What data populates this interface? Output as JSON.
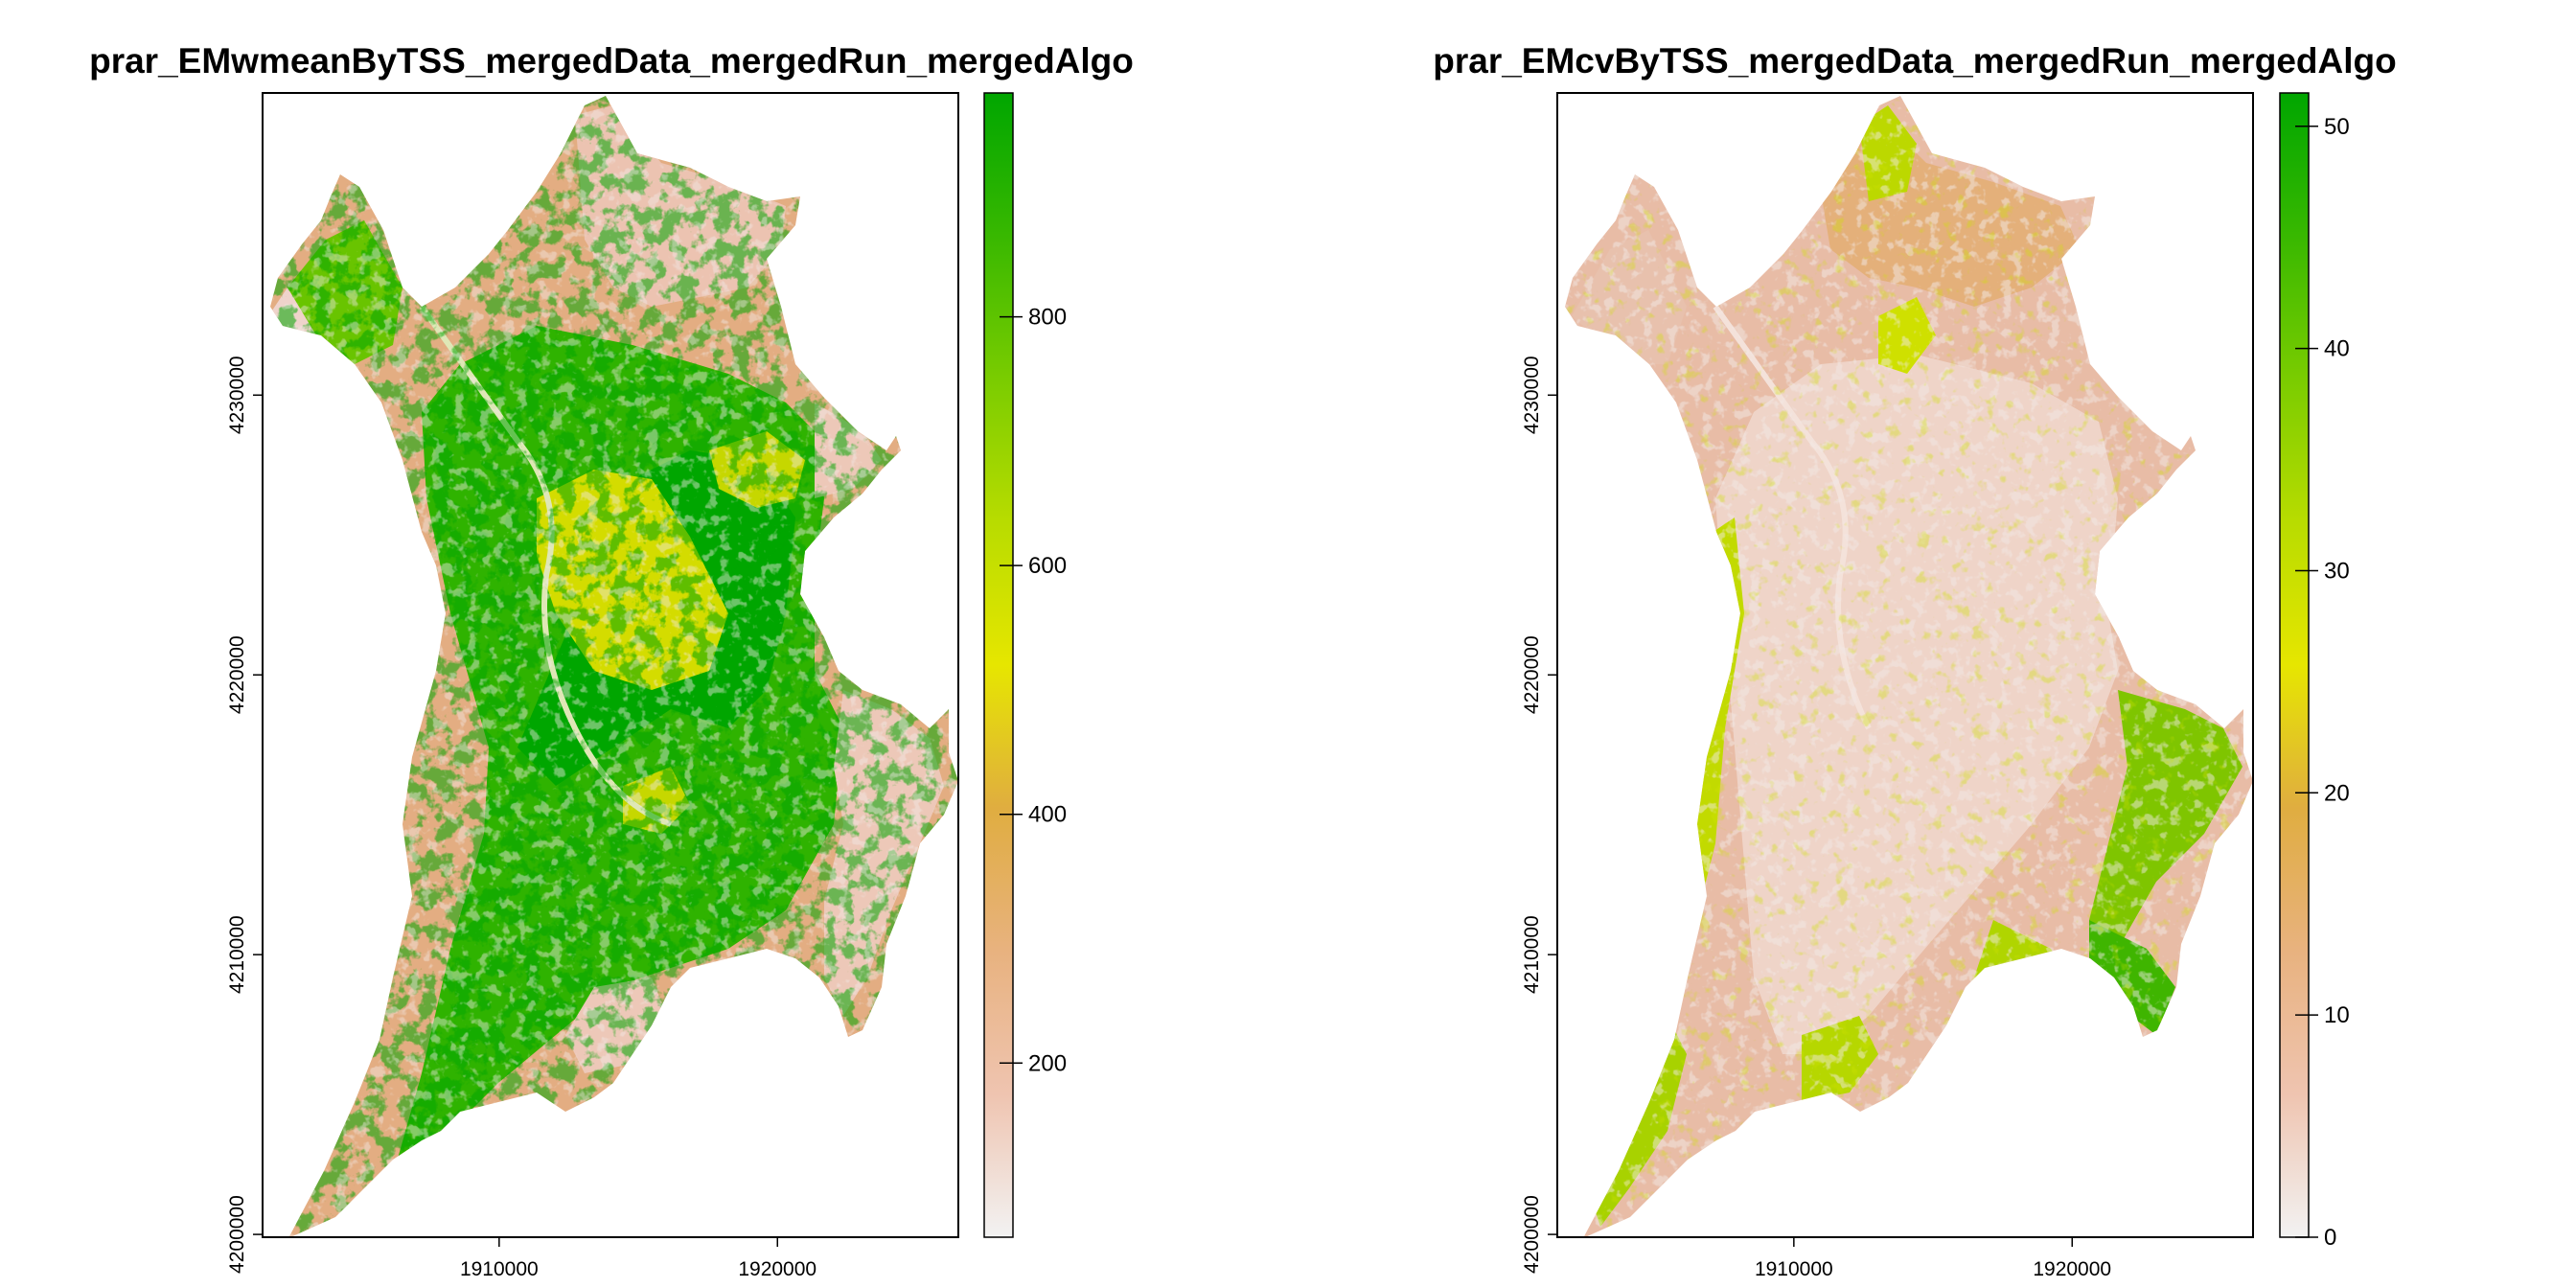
{
  "chart_data": [
    {
      "type": "heatmap",
      "title": "prar_EMwmeanByTSS_mergedData_mergedRun_mergedAlgo",
      "x_ticks": [
        1910000,
        1920000
      ],
      "x_tick_labels": [
        "1910000",
        "1920000"
      ],
      "y_ticks": [
        4230000,
        4220000,
        4210000,
        4200000
      ],
      "y_tick_labels": [
        "4230000",
        "4220000",
        "4210000",
        "4200000"
      ],
      "xlim": [
        1901500,
        1926500
      ],
      "ylim": [
        4199900,
        4240800
      ],
      "colorbar": {
        "range": [
          60,
          980
        ],
        "ticks": [
          200,
          400,
          600,
          800
        ],
        "tick_labels": [
          "200",
          "400",
          "600",
          "800"
        ],
        "colors": [
          "#f2f2f2",
          "#efc4b0",
          "#e8b27f",
          "#e0ad40",
          "#e6e600",
          "#b8dc00",
          "#7acc00",
          "#38b800",
          "#00a600"
        ]
      },
      "grid": false,
      "legend": "right"
    },
    {
      "type": "heatmap",
      "title": "prar_EMcvByTSS_mergedData_mergedRun_mergedAlgo",
      "x_ticks": [
        1910000,
        1920000
      ],
      "x_tick_labels": [
        "1910000",
        "1920000"
      ],
      "y_ticks": [
        4230000,
        4220000,
        4210000,
        4200000
      ],
      "y_tick_labels": [
        "4230000",
        "4220000",
        "4210000",
        "4200000"
      ],
      "xlim": [
        1901500,
        1926500
      ],
      "ylim": [
        4199900,
        4240800
      ],
      "colorbar": {
        "range": [
          0,
          51.5
        ],
        "ticks": [
          0,
          10,
          20,
          30,
          40,
          50
        ],
        "tick_labels": [
          "0",
          "10",
          "20",
          "30",
          "40",
          "50"
        ],
        "colors": [
          "#f2f2f2",
          "#efc4b0",
          "#e8b27f",
          "#e0ad40",
          "#e6e600",
          "#b8dc00",
          "#7acc00",
          "#38b800",
          "#00a600"
        ]
      },
      "grid": false,
      "legend": "right"
    }
  ]
}
